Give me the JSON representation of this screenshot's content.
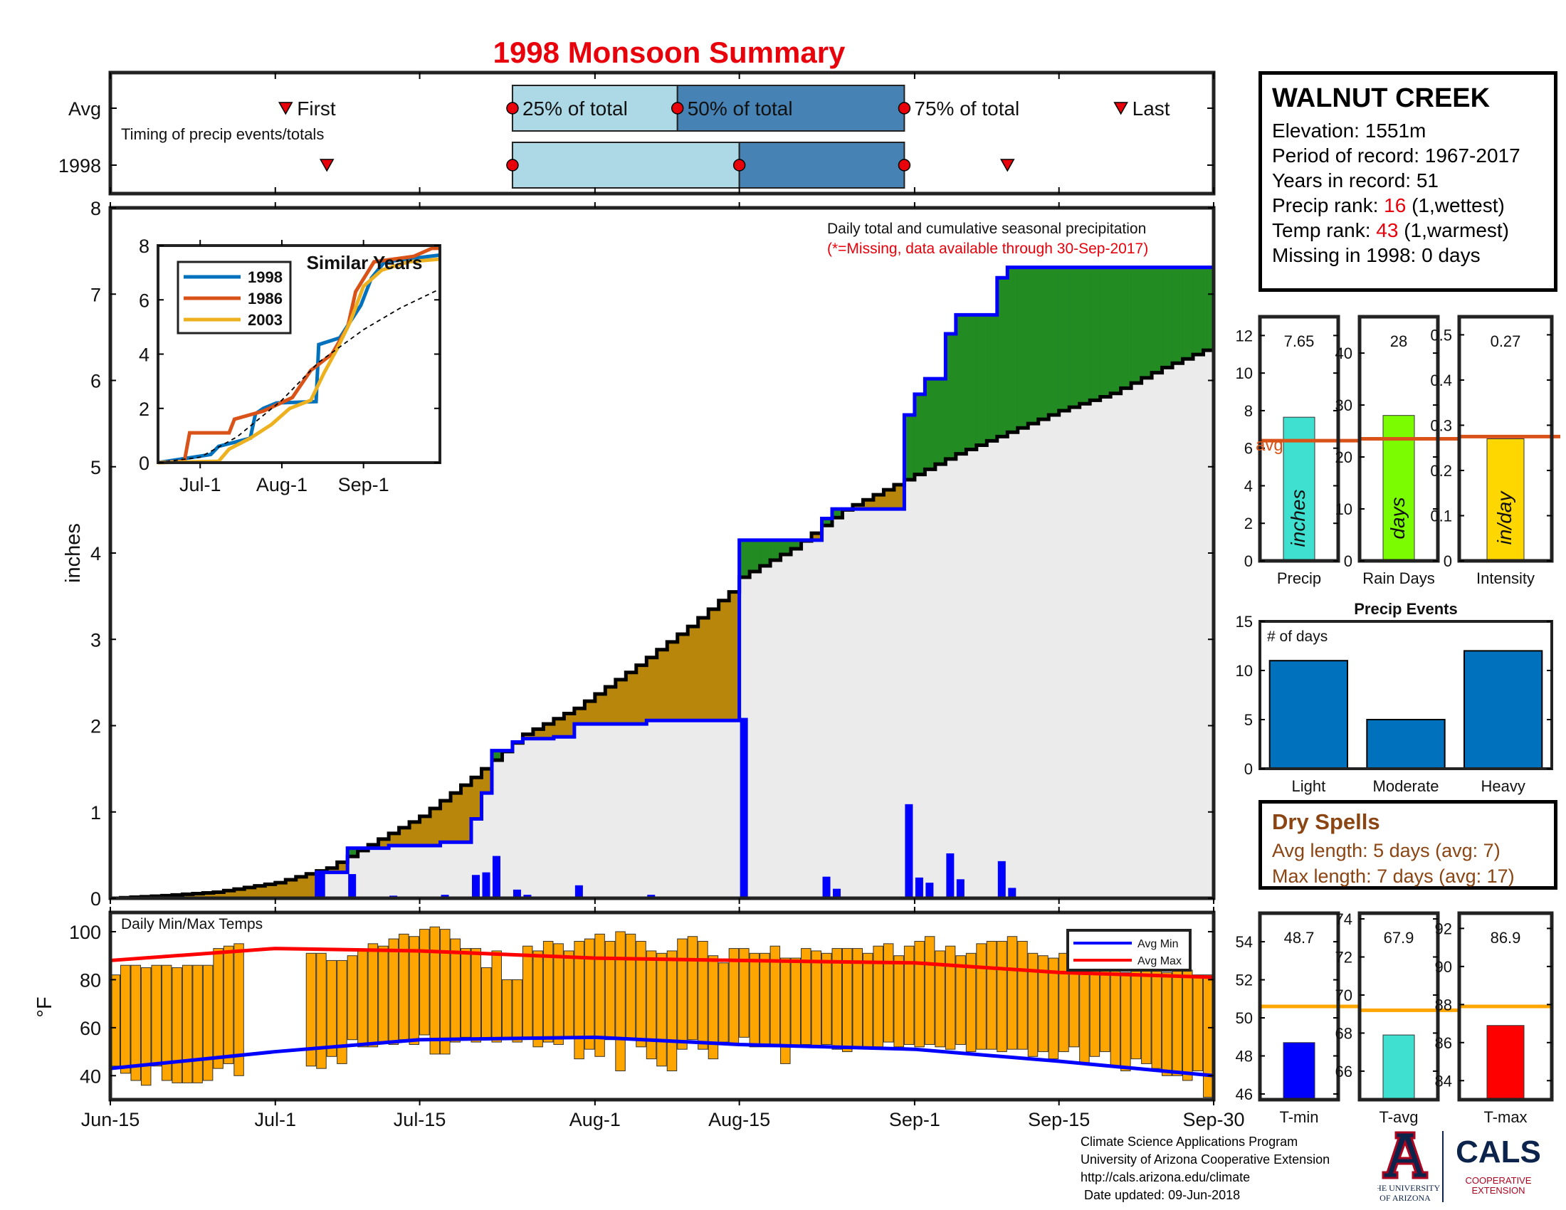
{
  "title": "1998 Monsoon Summary",
  "timing": {
    "row_avg_label": "Avg",
    "row_year_label": "1998",
    "caption": "Timing of precip events/totals",
    "first_label": "First",
    "last_label": "Last",
    "p25_label": "25% of total",
    "p50_label": "50% of total",
    "p75_label": "75% of total",
    "avg": {
      "first": "2024-07-02",
      "p25": "2024-07-24",
      "p50": "2024-08-09",
      "p75": "2024-08-31",
      "last": "2024-09-21"
    },
    "year": {
      "first": "2024-07-06",
      "p25": "2024-07-24",
      "p50": "2024-08-15",
      "p75": "2024-08-31",
      "last": "2024-09-10"
    }
  },
  "station": {
    "name": "WALNUT CREEK",
    "elevation_label": "Elevation: 1551m",
    "period_label": "Period of record: 1967-2017",
    "years_label": "Years in record: 51",
    "precip_rank_prefix": "Precip rank: ",
    "precip_rank": "16",
    "precip_rank_suffix": " (1,wettest)",
    "temp_rank_prefix": "Temp rank: ",
    "temp_rank": "43",
    "temp_rank_suffix": " (1,warmest)",
    "missing_label": "Missing in 1998: 0 days"
  },
  "dry_spells": {
    "title": "Dry Spells",
    "avg_length": "Avg length: 5 days (avg: 7)",
    "max_length": "Max length: 7 days (avg: 17)"
  },
  "footer": {
    "line1": "Climate Science Applications Program",
    "line2": "University of Arizona Cooperative Extension",
    "line3": "http://cals.arizona.edu/climate",
    "line4": " Date updated: 09-Jun-2018"
  },
  "logos": {
    "ua_line1": "THE UNIVERSITY",
    "ua_line2": "OF ARIZONA",
    "cals": "CALS",
    "coop1": "COOPERATIVE",
    "coop2": "EXTENSION"
  },
  "colors": {
    "blue": "#0000ff",
    "green": "#228b22",
    "brown": "#b8860b",
    "gray": "#ebebeb",
    "orange_bar": "#ffa500",
    "avg_line": "#d95319",
    "red": "#ff0000",
    "light_blue": "#add8e6",
    "steel_blue": "#4682b4",
    "bar_blue": "#0072bd"
  },
  "chart_data": [
    {
      "type": "area",
      "id": "cumulative",
      "annotation": "Daily total and cumulative seasonal precipitation",
      "annotation2": "(*=Missing, data available through 30-Sep-2017)",
      "ylabel": "inches",
      "ylim": [
        0,
        8
      ],
      "yticks": [
        0,
        1,
        2,
        3,
        4,
        5,
        6,
        7,
        8
      ],
      "xlim": [
        "2024-06-15",
        "2024-09-30"
      ],
      "xticks": [
        [
          "2024-06-15",
          "Jun-15"
        ],
        [
          "2024-07-01",
          "Jul-1"
        ],
        [
          "2024-07-15",
          "Jul-15"
        ],
        [
          "2024-08-01",
          "Aug-1"
        ],
        [
          "2024-08-15",
          "Aug-15"
        ],
        [
          "2024-09-01",
          "Sep-1"
        ],
        [
          "2024-09-15",
          "Sep-15"
        ],
        [
          "2024-09-30",
          "Sep-30"
        ]
      ],
      "daily_precip_1998": [
        [
          "2024-07-05",
          0.3
        ],
        [
          "2024-07-08",
          0.28
        ],
        [
          "2024-07-12",
          0.03
        ],
        [
          "2024-07-17",
          0.04
        ],
        [
          "2024-07-20",
          0.27
        ],
        [
          "2024-07-21",
          0.3
        ],
        [
          "2024-07-22",
          0.49
        ],
        [
          "2024-07-24",
          0.1
        ],
        [
          "2024-07-25",
          0.04
        ],
        [
          "2024-07-28",
          0.02
        ],
        [
          "2024-07-30",
          0.15
        ],
        [
          "2024-08-06",
          0.04
        ],
        [
          "2024-08-15",
          2.09
        ],
        [
          "2024-08-23",
          0.25
        ],
        [
          "2024-08-24",
          0.11
        ],
        [
          "2024-08-31",
          1.09
        ],
        [
          "2024-09-01",
          0.24
        ],
        [
          "2024-09-02",
          0.18
        ],
        [
          "2024-09-04",
          0.52
        ],
        [
          "2024-09-05",
          0.22
        ],
        [
          "2024-09-09",
          0.43
        ],
        [
          "2024-09-10",
          0.12
        ]
      ],
      "cumulative_avg": [
        [
          "2024-06-15",
          0.0
        ],
        [
          "2024-06-20",
          0.03
        ],
        [
          "2024-06-25",
          0.07
        ],
        [
          "2024-07-01",
          0.18
        ],
        [
          "2024-07-06",
          0.35
        ],
        [
          "2024-07-10",
          0.62
        ],
        [
          "2024-07-15",
          0.95
        ],
        [
          "2024-07-20",
          1.4
        ],
        [
          "2024-07-25",
          1.9
        ],
        [
          "2024-07-30",
          2.2
        ],
        [
          "2024-08-05",
          2.7
        ],
        [
          "2024-08-10",
          3.15
        ],
        [
          "2024-08-14",
          3.55
        ],
        [
          "2024-08-15",
          3.72
        ],
        [
          "2024-08-20",
          4.05
        ],
        [
          "2024-08-25",
          4.5
        ],
        [
          "2024-08-31",
          4.85
        ],
        [
          "2024-09-05",
          5.15
        ],
        [
          "2024-09-10",
          5.4
        ],
        [
          "2024-09-15",
          5.65
        ],
        [
          "2024-09-20",
          5.85
        ],
        [
          "2024-09-25",
          6.15
        ],
        [
          "2024-09-30",
          6.4
        ]
      ],
      "series": [
        {
          "name": "1998",
          "values_note": "cumulative of daily_precip_1998",
          "final": 7.65
        }
      ]
    },
    {
      "type": "line",
      "id": "similar-years",
      "title": "Similar Years",
      "ylim": [
        0,
        8
      ],
      "yticks": [
        0,
        2,
        4,
        6,
        8
      ],
      "xticks": [
        [
          "2024-07-01",
          "Jul-1"
        ],
        [
          "2024-08-01",
          "Aug-1"
        ],
        [
          "2024-09-01",
          "Sep-1"
        ]
      ],
      "xlim": [
        "2024-06-15",
        "2024-09-30"
      ],
      "series": [
        {
          "name": "1998",
          "color": "#0072bd",
          "points": [
            [
              "2024-06-15",
              0
            ],
            [
              "2024-07-05",
              0.3
            ],
            [
              "2024-07-08",
              0.6
            ],
            [
              "2024-07-20",
              0.9
            ],
            [
              "2024-07-22",
              1.8
            ],
            [
              "2024-07-25",
              2.0
            ],
            [
              "2024-07-30",
              2.2
            ],
            [
              "2024-08-14",
              2.25
            ],
            [
              "2024-08-15",
              4.35
            ],
            [
              "2024-08-23",
              4.6
            ],
            [
              "2024-08-31",
              5.8
            ],
            [
              "2024-09-04",
              6.8
            ],
            [
              "2024-09-09",
              7.4
            ],
            [
              "2024-09-30",
              7.65
            ]
          ]
        },
        {
          "name": "1986",
          "color": "#d95319",
          "points": [
            [
              "2024-06-15",
              0
            ],
            [
              "2024-06-25",
              0.05
            ],
            [
              "2024-06-27",
              1.1
            ],
            [
              "2024-07-12",
              1.1
            ],
            [
              "2024-07-14",
              1.6
            ],
            [
              "2024-07-25",
              1.9
            ],
            [
              "2024-08-05",
              2.4
            ],
            [
              "2024-08-12",
              3.4
            ],
            [
              "2024-08-20",
              4.0
            ],
            [
              "2024-08-26",
              5.0
            ],
            [
              "2024-08-29",
              6.3
            ],
            [
              "2024-09-05",
              7.4
            ],
            [
              "2024-09-20",
              7.6
            ],
            [
              "2024-09-27",
              7.9
            ],
            [
              "2024-09-30",
              7.9
            ]
          ]
        },
        {
          "name": "2003",
          "color": "#edb120",
          "points": [
            [
              "2024-06-15",
              0
            ],
            [
              "2024-07-08",
              0.05
            ],
            [
              "2024-07-12",
              0.5
            ],
            [
              "2024-07-20",
              0.9
            ],
            [
              "2024-07-28",
              1.4
            ],
            [
              "2024-08-04",
              2.0
            ],
            [
              "2024-08-12",
              2.3
            ],
            [
              "2024-08-17",
              3.3
            ],
            [
              "2024-08-22",
              4.2
            ],
            [
              "2024-08-27",
              5.2
            ],
            [
              "2024-09-01",
              6.5
            ],
            [
              "2024-09-08",
              7.1
            ],
            [
              "2024-09-18",
              7.4
            ],
            [
              "2024-09-30",
              7.5
            ]
          ]
        },
        {
          "name": "",
          "color": "#000000",
          "dashed": true,
          "points": [
            [
              "2024-06-15",
              0
            ],
            [
              "2024-07-01",
              0.2
            ],
            [
              "2024-07-15",
              0.95
            ],
            [
              "2024-08-01",
              2.3
            ],
            [
              "2024-08-15",
              3.7
            ],
            [
              "2024-09-01",
              4.9
            ],
            [
              "2024-09-15",
              5.7
            ],
            [
              "2024-09-30",
              6.4
            ]
          ]
        }
      ]
    },
    {
      "type": "bar",
      "id": "temps",
      "title": "Daily Min/Max Temps",
      "ylabel": "°F",
      "ylim": [
        30,
        108
      ],
      "yticks": [
        40,
        60,
        80,
        100
      ],
      "legend": [
        "Avg Min",
        "Avg Max"
      ],
      "legend_position": "top-right",
      "avg_max": [
        [
          "2024-06-15",
          88
        ],
        [
          "2024-07-01",
          93
        ],
        [
          "2024-07-15",
          92
        ],
        [
          "2024-08-01",
          89
        ],
        [
          "2024-08-15",
          88
        ],
        [
          "2024-09-01",
          87
        ],
        [
          "2024-09-15",
          83
        ],
        [
          "2024-09-30",
          81
        ]
      ],
      "avg_min": [
        [
          "2024-06-15",
          43
        ],
        [
          "2024-07-01",
          50
        ],
        [
          "2024-07-15",
          55
        ],
        [
          "2024-08-01",
          56
        ],
        [
          "2024-08-15",
          53
        ],
        [
          "2024-09-01",
          51
        ],
        [
          "2024-09-15",
          46
        ],
        [
          "2024-09-30",
          40
        ]
      ],
      "daily_min": [
        44,
        41,
        38,
        36,
        44,
        38,
        37,
        37,
        37,
        38,
        43,
        45,
        40,
        41,
        0,
        0,
        0,
        0,
        0,
        44,
        43,
        48,
        45,
        55,
        52,
        52,
        54,
        53,
        55,
        53,
        57,
        49,
        49,
        54,
        56,
        54,
        55,
        54,
        55,
        54,
        56,
        52,
        54,
        53,
        56,
        47,
        51,
        48,
        55,
        42,
        55,
        52,
        47,
        44,
        42,
        51,
        55,
        51,
        47,
        54,
        53,
        56,
        52,
        52,
        52,
        45,
        52,
        53,
        52,
        53,
        51,
        50,
        52,
        52,
        52,
        54,
        52,
        53,
        52,
        53,
        52,
        51,
        53,
        50,
        51,
        51,
        50,
        51,
        51,
        48,
        50,
        47,
        50,
        52,
        45,
        48,
        50,
        44,
        42,
        47,
        45,
        43,
        40,
        40,
        38,
        42,
        31
      ],
      "daily_max": [
        82,
        86,
        86,
        85,
        86,
        86,
        85,
        86,
        86,
        86,
        93,
        94,
        95,
        0,
        0,
        0,
        0,
        0,
        93,
        91,
        91,
        88,
        88,
        90,
        92,
        95,
        94,
        97,
        99,
        98,
        101,
        102,
        101,
        97,
        93,
        93,
        85,
        92,
        80,
        80,
        94,
        92,
        96,
        95,
        92,
        96,
        97,
        99,
        96,
        100,
        99,
        96,
        92,
        91,
        92,
        97,
        98,
        96,
        90,
        87,
        93,
        93,
        91,
        91,
        94,
        89,
        89,
        93,
        92,
        91,
        93,
        93,
        93,
        91,
        94,
        95,
        90,
        94,
        96,
        98,
        92,
        94,
        90,
        91,
        95,
        96,
        96,
        98,
        96,
        91,
        90,
        89,
        91,
        90,
        88,
        90,
        85,
        88,
        83,
        87,
        86,
        85,
        83,
        86,
        84,
        82,
        82
      ],
      "start_date": "2024-06-15"
    },
    {
      "type": "bar",
      "id": "season-precip",
      "label": "Precip",
      "value_label": "7.65",
      "unit_label": "inches",
      "value": 7.65,
      "avg": 6.4,
      "avg_label": "avg",
      "ylim": [
        0,
        13
      ],
      "yticks": [
        0,
        2,
        4,
        6,
        8,
        10,
        12
      ],
      "color": "#40e0d0"
    },
    {
      "type": "bar",
      "id": "rain-days",
      "label": "Rain Days",
      "value_label": "28",
      "unit_label": "days",
      "value": 28,
      "avg": 23.5,
      "ylim": [
        0,
        47
      ],
      "yticks": [
        0,
        10,
        20,
        30,
        40
      ],
      "color": "#7cfc00"
    },
    {
      "type": "bar",
      "id": "intensity",
      "label": "Intensity",
      "value_label": "0.27",
      "unit_label": "in/day",
      "value": 0.27,
      "avg": 0.275,
      "ylim": [
        0,
        0.54
      ],
      "yticks": [
        0,
        0.1,
        0.2,
        0.3,
        0.4,
        0.5
      ],
      "color": "#ffd700"
    },
    {
      "type": "bar",
      "id": "precip-events",
      "title": "Precip Events",
      "annotation": "# of days",
      "categories": [
        "Light",
        "Moderate",
        "Heavy"
      ],
      "values": [
        11,
        5,
        12
      ],
      "ylim": [
        0,
        15
      ],
      "yticks": [
        0,
        5,
        10,
        15
      ],
      "color": "#0072bd"
    },
    {
      "type": "bar",
      "id": "t-min",
      "label": "T-min",
      "value_label": "48.7",
      "value": 48.7,
      "avg": 50.6,
      "ylim": [
        45.7,
        55.5
      ],
      "yticks": [
        46,
        48,
        50,
        52,
        54
      ],
      "color": "#0000ff"
    },
    {
      "type": "bar",
      "id": "t-avg",
      "label": "T-avg",
      "value_label": "67.9",
      "value": 67.9,
      "avg": 69.2,
      "ylim": [
        64.5,
        74.3
      ],
      "yticks": [
        66,
        68,
        70,
        72,
        74
      ],
      "color": "#40e0d0"
    },
    {
      "type": "bar",
      "id": "t-max",
      "label": "T-max",
      "value_label": "86.9",
      "value": 86.9,
      "avg": 87.9,
      "ylim": [
        83.0,
        92.8
      ],
      "yticks": [
        84,
        86,
        88,
        90,
        92
      ],
      "color": "#ff0000"
    }
  ]
}
